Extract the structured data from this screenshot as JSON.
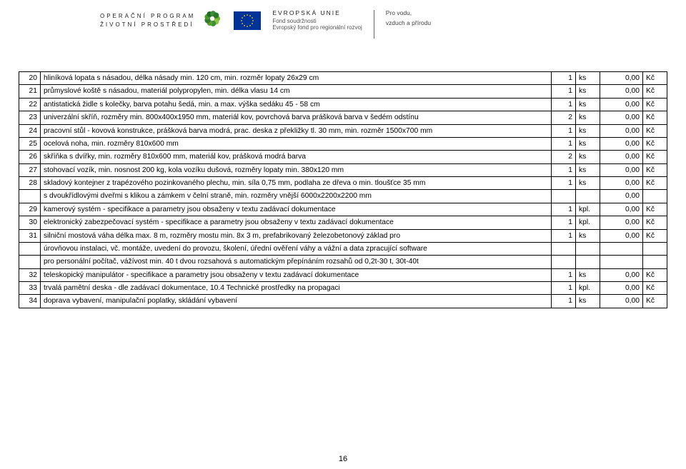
{
  "header": {
    "op_line1": "OPERAČNÍ PROGRAM",
    "op_line2": "ŽIVOTNÍ PROSTŘEDÍ",
    "eu_title": "EVROPSKÁ UNIE",
    "eu_sub1": "Fond soudržnosti",
    "eu_sub2": "Evropský fond pro regionální rozvoj",
    "pro1": "Pro vodu,",
    "pro2": "vzduch a přírodu",
    "op_icon_colors": [
      "#6fb52c",
      "#8fc73e",
      "#3a8f3a",
      "#5aa02e",
      "#2f7a2f",
      "#4a9a2a",
      "#1f6d1f",
      "#3e8e3e",
      "#2b7a2b"
    ],
    "eu_flag_bg": "#003399",
    "eu_star": "#ffcc00"
  },
  "rows": [
    {
      "no": "20",
      "desc": "hliníková lopata s násadou, délka násady min. 120 cm, min. rozměr lopaty 26x29 cm",
      "qty": "1",
      "unit": "ks",
      "p1": "0,00",
      "p2": "Kč"
    },
    {
      "no": "21",
      "desc": "průmyslové koště s násadou, materiál polypropylen, min. délka vlasu 14 cm",
      "qty": "1",
      "unit": "ks",
      "p1": "0,00",
      "p2": "Kč"
    },
    {
      "no": "22",
      "desc": "antistatická židle s kolečky, barva potahu šedá, min. a max. výška sedáku 45 - 58 cm",
      "qty": "1",
      "unit": "ks",
      "p1": "0,00",
      "p2": "Kč"
    },
    {
      "no": "23",
      "desc": "univerzální skříň, rozměry min. 800x400x1950 mm, materiál kov, povrchová barva prášková barva v šedém odstínu",
      "qty": "2",
      "unit": "ks",
      "p1": "0,00",
      "p2": "Kč"
    },
    {
      "no": "24",
      "desc": "pracovní stůl - kovová konstrukce, prášková barva modrá, prac. deska z překližky tl. 30 mm, min. rozměr 1500x700 mm",
      "qty": "1",
      "unit": "ks",
      "p1": "0,00",
      "p2": "Kč"
    },
    {
      "no": "25",
      "desc": "ocelová noha, min. rozměry 810x600 mm",
      "qty": "1",
      "unit": "ks",
      "p1": "0,00",
      "p2": "Kč"
    },
    {
      "no": "26",
      "desc": "skříňka s dvířky, min. rozměry 810x600 mm, materiál kov, prášková modrá barva",
      "qty": "2",
      "unit": "ks",
      "p1": "0,00",
      "p2": "Kč"
    },
    {
      "no": "27",
      "desc": "stohovací vozík, min. nosnost 200 kg, kola vozíku dušová, rozměry lopaty min. 380x120 mm",
      "qty": "1",
      "unit": "ks",
      "p1": "0,00",
      "p2": "Kč"
    },
    {
      "no": "28",
      "desc": "skladový kontejner z trapézového pozinkovaného plechu, min. síla 0,75 mm, podlaha ze dřeva o min. tloušťce 35 mm",
      "qty": "1",
      "unit": "ks",
      "p1": "0,00",
      "p2": "Kč"
    },
    {
      "no": "",
      "desc": "s dvoukřídlovými dveřmi s klikou a zámkem v čelní straně, min. rozměry vnější 6000x2200x2200 mm",
      "qty": "",
      "unit": "",
      "p1": "0,00",
      "p2": ""
    },
    {
      "no": "29",
      "desc": "kamerový systém - specifikace a parametry jsou obsaženy v textu zadávací dokumentace",
      "qty": "1",
      "unit": "kpl.",
      "p1": "0,00",
      "p2": "Kč"
    },
    {
      "no": "30",
      "desc": "elektronický zabezpečovací systém - specifikace a parametry jsou obsaženy v textu zadávací dokumentace",
      "qty": "1",
      "unit": "kpl.",
      "p1": "0,00",
      "p2": "Kč"
    },
    {
      "no": "31",
      "desc": "silniční mostová váha délka max. 8 m, rozměry mostu min. 8x 3 m, prefabrikovaný železobetonový základ pro",
      "qty": "1",
      "unit": "ks",
      "p1": "0,00",
      "p2": "Kč"
    },
    {
      "no": "",
      "desc": "úrovňovou instalaci, vč. montáže, uvedení do provozu, školení, úřední ověření váhy a vážní a data zpracující software",
      "qty": "",
      "unit": "",
      "p1": "",
      "p2": ""
    },
    {
      "no": "",
      "desc": "pro personální počítač, vážívost min. 40 t dvou rozsahová s automatickým přepínáním rozsahů od 0,2t-30 t, 30t-40t",
      "qty": "",
      "unit": "",
      "p1": "",
      "p2": ""
    },
    {
      "no": "32",
      "desc": "teleskopický manipulátor - specifikace a parametry jsou obsaženy v textu zadávací dokumentace",
      "qty": "1",
      "unit": "ks",
      "p1": "0,00",
      "p2": "Kč"
    },
    {
      "no": "33",
      "desc": "trvalá pamětní deska - dle  zadávací dokumentace, 10.4 Technické prostředky na propagaci",
      "qty": "1",
      "unit": "kpl.",
      "p1": "0,00",
      "p2": "Kč"
    },
    {
      "no": "34",
      "desc": "doprava vybavení, manipulační poplatky, skládání vybavení",
      "qty": "1",
      "unit": "ks",
      "p1": "0,00",
      "p2": "Kč"
    }
  ],
  "page_number": "16",
  "style": {
    "font_size_body": 10.3,
    "border_color": "#000000",
    "header_text_color": "#222222"
  }
}
